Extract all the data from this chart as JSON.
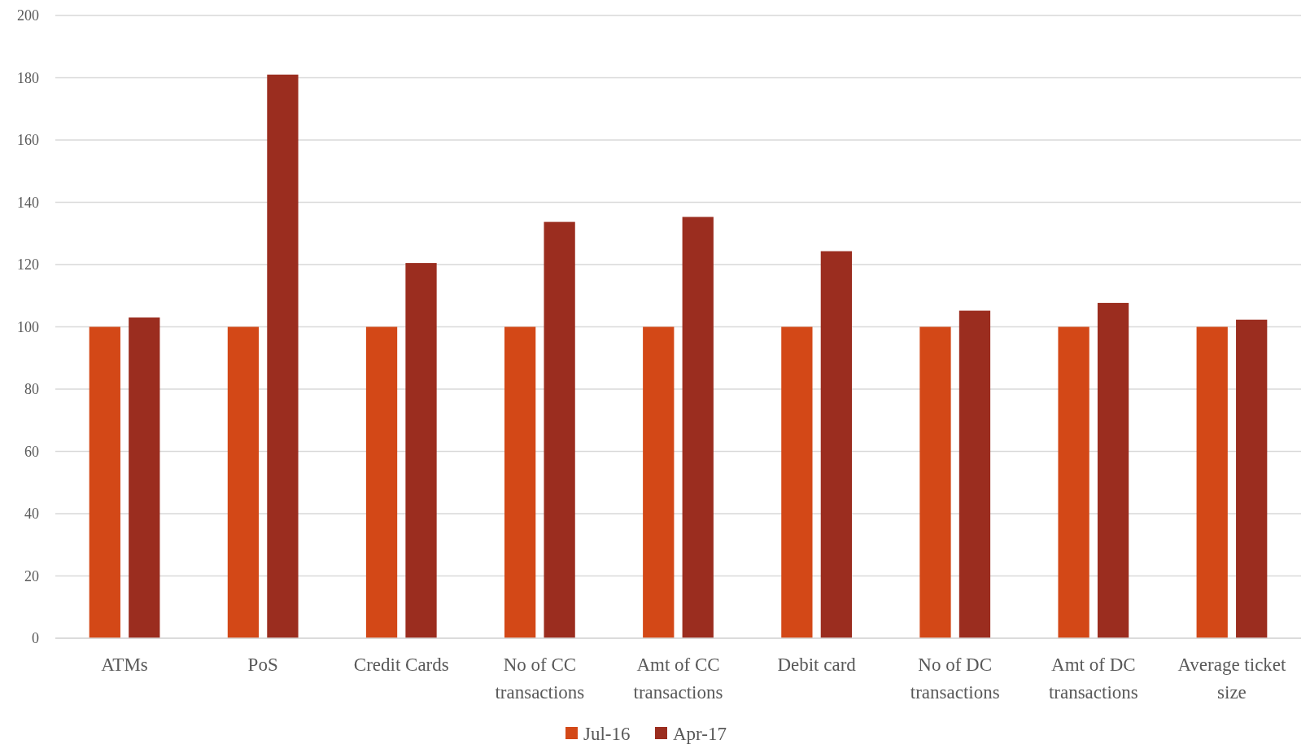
{
  "chart_data": {
    "type": "bar",
    "categories": [
      "ATMs",
      "PoS",
      "Credit Cards",
      "No of CC transactions",
      "Amt of CC transactions",
      "Debit card",
      "No of DC transactions",
      "Amt of DC transactions",
      "Average ticket size"
    ],
    "series": [
      {
        "name": "Jul-16",
        "color": "#d34817",
        "values": [
          100,
          100,
          100,
          100,
          100,
          100,
          100,
          100,
          100
        ]
      },
      {
        "name": "Apr-17",
        "color": "#9b2d1f",
        "values": [
          103,
          181,
          120.5,
          133.7,
          135.3,
          124.3,
          105.2,
          107.7,
          102.3
        ]
      }
    ],
    "ylim": [
      0,
      200
    ],
    "yticks": [
      0,
      20,
      40,
      60,
      80,
      100,
      120,
      140,
      160,
      180,
      200
    ],
    "grid": "y",
    "legend": "bottom"
  }
}
